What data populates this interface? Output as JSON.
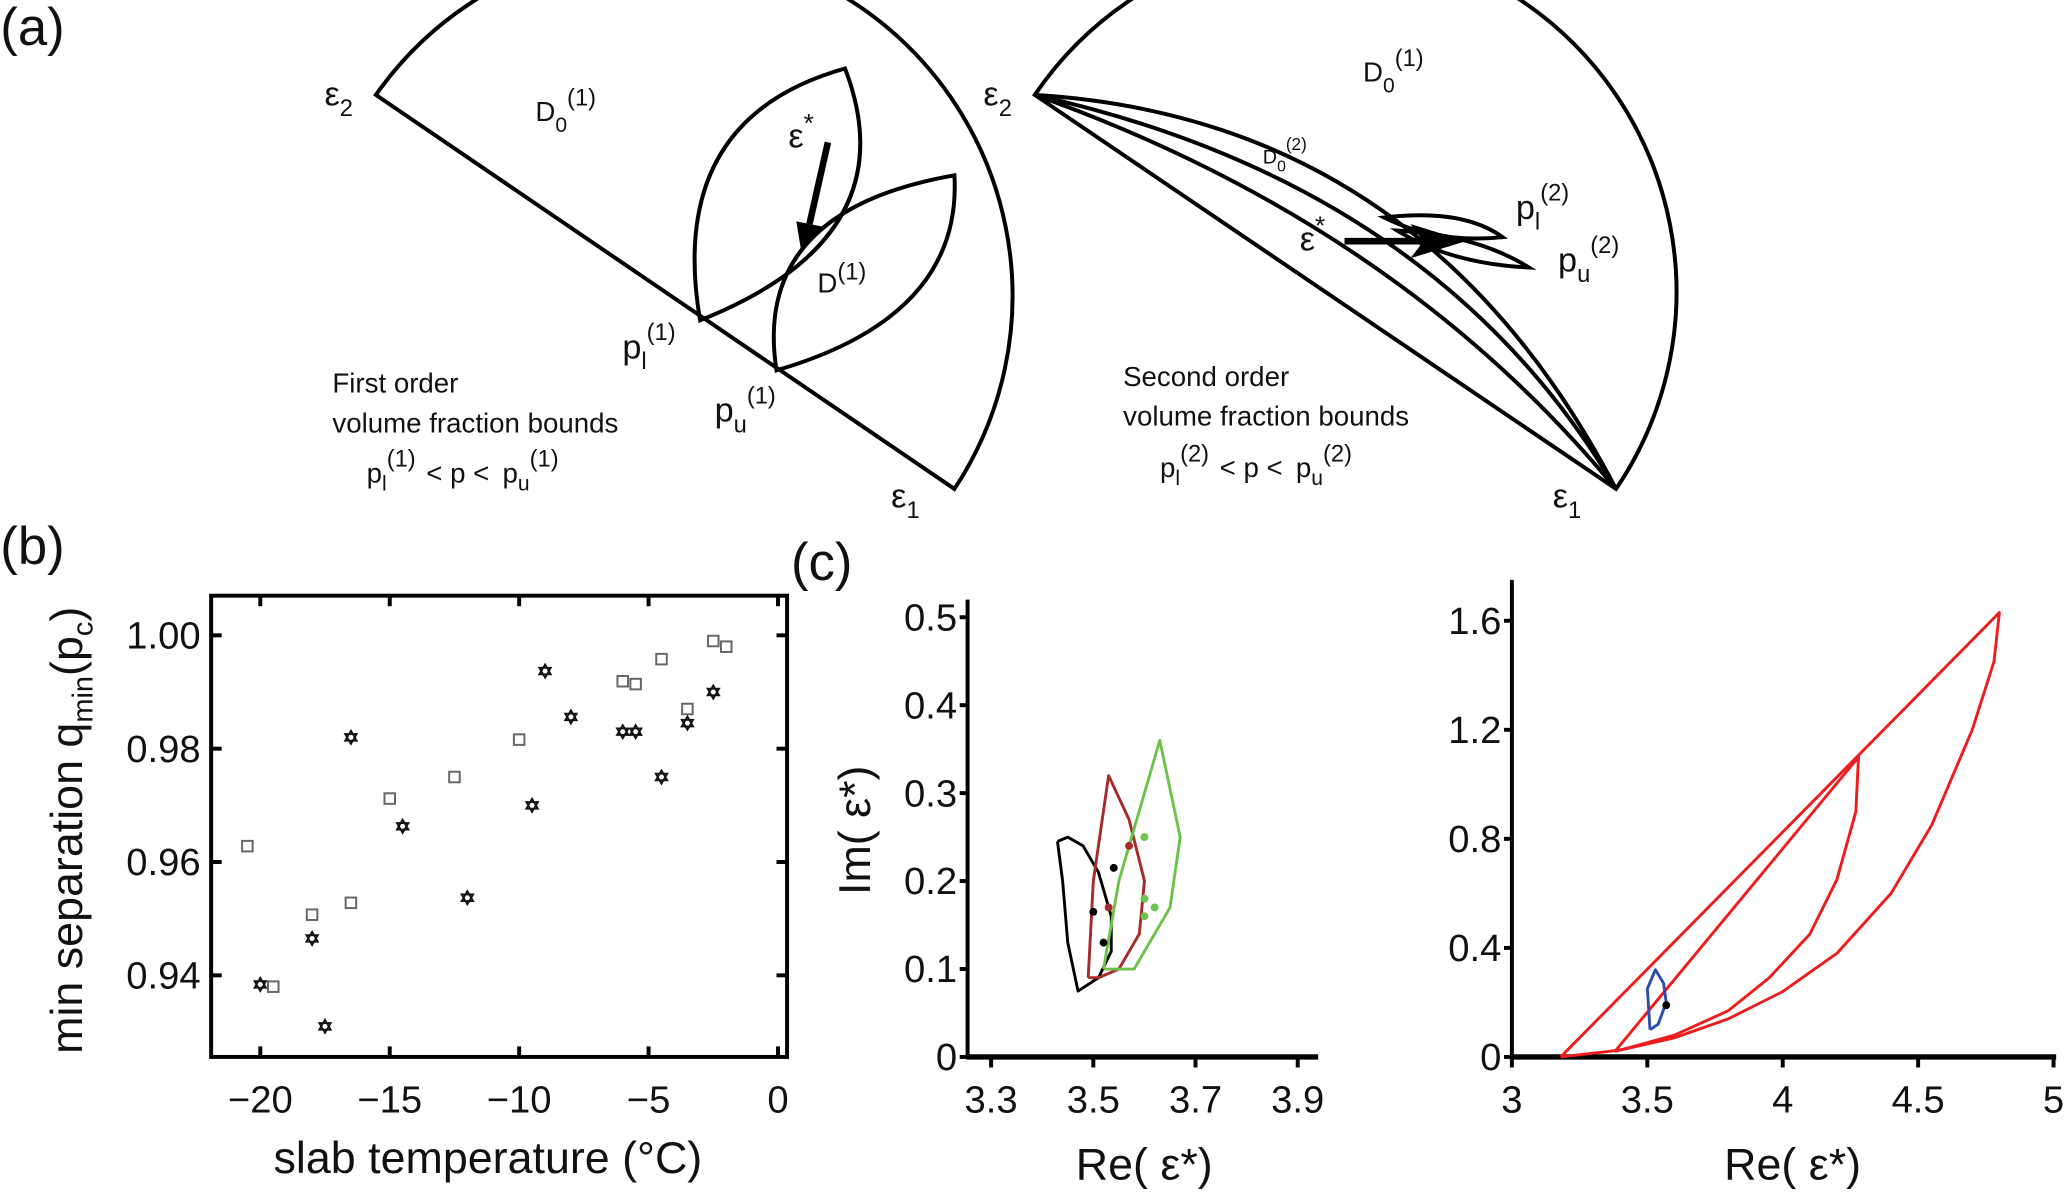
{
  "panels": {
    "a": "(a)",
    "b": "(b)",
    "c": "(c)"
  },
  "diagram_first": {
    "eps2": {
      "base": "ε",
      "sub": "2"
    },
    "eps1": {
      "base": "ε",
      "sub": "1"
    },
    "D0": {
      "base": "D",
      "sub": "0",
      "sup": "(1)"
    },
    "eps_star": {
      "base": "ε",
      "sup": "*"
    },
    "D1": {
      "base": "D",
      "sup": "(1)"
    },
    "pl": {
      "base": "p",
      "sub": "l",
      "sup": "(1)"
    },
    "pu": {
      "base": "p",
      "sub": "u",
      "sup": "(1)"
    },
    "caption": [
      "First order",
      "volume fraction bounds"
    ],
    "inequality": {
      "pl": "p",
      "pl_sub": "l",
      "pl_sup": "(1)",
      "mid": "<  p  <",
      "pu": "p",
      "pu_sub": "u",
      "pu_sup": "(1)"
    }
  },
  "diagram_second": {
    "eps2": {
      "base": "ε",
      "sub": "2"
    },
    "eps1": {
      "base": "ε",
      "sub": "1"
    },
    "D0_1": {
      "base": "D",
      "sub": "0",
      "sup": "(1)"
    },
    "D0_2": {
      "base": "D",
      "sub": "0",
      "sup": "(2)"
    },
    "eps_star": {
      "base": "ε",
      "sup": "*"
    },
    "pl": {
      "base": "p",
      "sub": "l",
      "sup": "(2)"
    },
    "pu": {
      "base": "p",
      "sub": "u",
      "sup": "(2)"
    },
    "caption": [
      "Second order",
      "volume fraction bounds"
    ],
    "inequality": {
      "pl": "p",
      "pl_sub": "l",
      "pl_sup": "(2)",
      "mid": "<  p  <",
      "pu": "p",
      "pu_sub": "u",
      "pu_sup": "(2)"
    }
  },
  "chart_data": [
    {
      "type": "scatter",
      "panel": "b",
      "xlabel": "slab temperature (°C)",
      "ylabel": {
        "base": "min separation q",
        "sub": "min",
        "tail": "(p",
        "tail_sub": "c",
        "end": ")"
      },
      "xlim": [
        -21.9,
        0.35
      ],
      "ylim": [
        0.9256,
        1.007
      ],
      "xticks": [
        -20,
        -15,
        -10,
        -5,
        0
      ],
      "xtick_labels": [
        "−20",
        "−15",
        "−10",
        "−5",
        "0"
      ],
      "yticks": [
        0.94,
        0.96,
        0.98,
        1.0
      ],
      "ytick_labels": [
        "0.94",
        "0.96",
        "0.98",
        "1.00"
      ],
      "series": [
        {
          "name": "squares",
          "marker": "square",
          "color": "#666666",
          "points": [
            [
              -20.5,
              0.9628
            ],
            [
              -19.5,
              0.938
            ],
            [
              -18,
              0.9507
            ],
            [
              -16.5,
              0.9528
            ],
            [
              -15,
              0.9712
            ],
            [
              -12.5,
              0.975
            ],
            [
              -10,
              0.9816
            ],
            [
              -6,
              0.9919
            ],
            [
              -5.5,
              0.9914
            ],
            [
              -4.5,
              0.9958
            ],
            [
              -3.5,
              0.987
            ],
            [
              -2.5,
              0.999
            ],
            [
              -2,
              0.998
            ]
          ]
        },
        {
          "name": "stars",
          "marker": "star",
          "color": "#111111",
          "points": [
            [
              -20,
              0.9384
            ],
            [
              -18,
              0.9465
            ],
            [
              -17.5,
              0.931
            ],
            [
              -16.5,
              0.982
            ],
            [
              -14.5,
              0.9663
            ],
            [
              -12,
              0.9537
            ],
            [
              -9.5,
              0.97
            ],
            [
              -9,
              0.9937
            ],
            [
              -8,
              0.9856
            ],
            [
              -6,
              0.983
            ],
            [
              -5.5,
              0.983
            ],
            [
              -4.5,
              0.975
            ],
            [
              -3.5,
              0.9845
            ],
            [
              -2.5,
              0.99
            ]
          ]
        }
      ]
    },
    {
      "type": "line",
      "panel": "c-left",
      "xlabel": "Re( ε*)",
      "ylabel": "Im( ε*)",
      "xlim": [
        3.254,
        3.94
      ],
      "ylim": [
        0,
        0.52
      ],
      "xticks": [
        3.3,
        3.5,
        3.7,
        3.9
      ],
      "xtick_labels": [
        "3.3",
        "3.5",
        "3.7",
        "3.9"
      ],
      "yticks": [
        0,
        0.1,
        0.2,
        0.3,
        0.4,
        0.5
      ],
      "ytick_labels": [
        "0",
        "0.1",
        "0.2",
        "0.3",
        "0.4",
        "0.5"
      ],
      "series": [
        {
          "name": "black-bound",
          "color": "#000000",
          "points": [
            [
              3.43,
              0.245
            ],
            [
              3.45,
              0.25
            ],
            [
              3.48,
              0.24
            ],
            [
              3.51,
              0.21
            ],
            [
              3.535,
              0.16
            ],
            [
              3.535,
              0.12
            ],
            [
              3.51,
              0.09
            ],
            [
              3.47,
              0.075
            ],
            [
              3.45,
              0.13
            ],
            [
              3.44,
              0.2
            ],
            [
              3.43,
              0.245
            ]
          ]
        },
        {
          "name": "darkred-bound",
          "color": "#a52a2a",
          "points": [
            [
              3.49,
              0.09
            ],
            [
              3.5,
              0.2
            ],
            [
              3.53,
              0.32
            ],
            [
              3.57,
              0.27
            ],
            [
              3.6,
              0.2
            ],
            [
              3.59,
              0.14
            ],
            [
              3.55,
              0.1
            ],
            [
              3.51,
              0.09
            ],
            [
              3.49,
              0.09
            ]
          ]
        },
        {
          "name": "green-bound",
          "color": "#6cc24a",
          "points": [
            [
              3.52,
              0.1
            ],
            [
              3.55,
              0.2
            ],
            [
              3.63,
              0.36
            ],
            [
              3.67,
              0.25
            ],
            [
              3.65,
              0.17
            ],
            [
              3.58,
              0.1
            ],
            [
              3.52,
              0.1
            ]
          ]
        }
      ],
      "markers": [
        {
          "color": "#000000",
          "points": [
            [
              3.54,
              0.215
            ],
            [
              3.5,
              0.165
            ],
            [
              3.52,
              0.13
            ]
          ]
        },
        {
          "color": "#a52a2a",
          "points": [
            [
              3.53,
              0.17
            ],
            [
              3.57,
              0.24
            ]
          ]
        },
        {
          "color": "#6cc24a",
          "points": [
            [
              3.6,
              0.25
            ],
            [
              3.6,
              0.18
            ],
            [
              3.62,
              0.17
            ],
            [
              3.6,
              0.16
            ]
          ]
        }
      ]
    },
    {
      "type": "line",
      "panel": "c-right",
      "xlabel": "Re( ε*)",
      "ylabel": "",
      "xlim": [
        3,
        5
      ],
      "ylim": [
        0,
        1.75
      ],
      "xticks": [
        3,
        3.5,
        4,
        4.5,
        5
      ],
      "xtick_labels": [
        "3",
        "3.5",
        "4",
        "4.5",
        "5"
      ],
      "yticks": [
        0,
        0.4,
        0.8,
        1.2,
        1.6
      ],
      "ytick_labels": [
        "0",
        "0.4",
        "0.8",
        "1.2",
        "1.6"
      ],
      "series": [
        {
          "name": "outer-bound",
          "color": "#ee1c1c",
          "points": [
            [
              3.18,
              0
            ],
            [
              4.8,
              1.63
            ],
            [
              4.78,
              1.45
            ],
            [
              4.7,
              1.2
            ],
            [
              4.55,
              0.85
            ],
            [
              4.4,
              0.6
            ],
            [
              4.2,
              0.38
            ],
            [
              4.0,
              0.24
            ],
            [
              3.8,
              0.14
            ],
            [
              3.6,
              0.07
            ],
            [
              3.4,
              0.025
            ],
            [
              3.18,
              0
            ]
          ]
        },
        {
          "name": "inner-bound",
          "color": "#ee1c1c",
          "points": [
            [
              3.38,
              0.02
            ],
            [
              4.28,
              1.1
            ],
            [
              4.27,
              0.9
            ],
            [
              4.2,
              0.65
            ],
            [
              4.1,
              0.45
            ],
            [
              3.95,
              0.29
            ],
            [
              3.8,
              0.17
            ],
            [
              3.6,
              0.08
            ],
            [
              3.38,
              0.02
            ]
          ]
        },
        {
          "name": "blue-bound",
          "color": "#2a4fa8",
          "points": [
            [
              3.51,
              0.1
            ],
            [
              3.5,
              0.25
            ],
            [
              3.53,
              0.32
            ],
            [
              3.56,
              0.27
            ],
            [
              3.57,
              0.2
            ],
            [
              3.54,
              0.12
            ],
            [
              3.51,
              0.1
            ]
          ]
        }
      ],
      "markers": [
        {
          "color": "#000000",
          "points": [
            [
              3.57,
              0.19
            ]
          ]
        }
      ]
    }
  ]
}
